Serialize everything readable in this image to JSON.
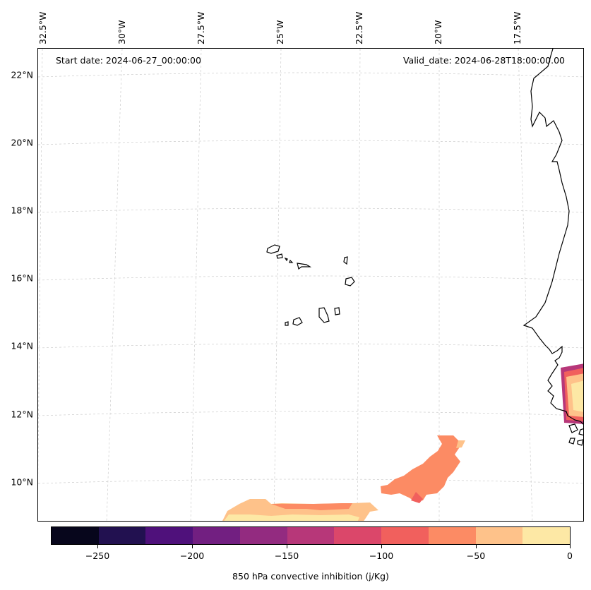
{
  "map": {
    "start_date": "Start date: 2024-06-27_00:00:00",
    "valid_date": "Valid_date: 2024-06-28T18:00:00.00",
    "lat_labels": [
      "22°N",
      "20°N",
      "18°N",
      "16°N",
      "14°N",
      "12°N",
      "10°N"
    ],
    "lon_labels": [
      "32.5°W",
      "30°W",
      "27.5°W",
      "25°W",
      "22.5°W",
      "20°W",
      "17.5°W"
    ],
    "region": "Cabo Verde and West African coast"
  },
  "colorbar": {
    "label": "850 hPa convective inhibition (j/Kg)",
    "tick_labels": [
      "−250",
      "−200",
      "−150",
      "−100",
      "−50",
      "0"
    ],
    "bounds": [
      -275,
      -250,
      -225,
      -200,
      -175,
      -150,
      -125,
      -100,
      -75,
      -50,
      -25,
      0
    ],
    "colors": [
      "#07061c",
      "#221150",
      "#4f117b",
      "#721f81",
      "#932b80",
      "#b73779",
      "#db476a",
      "#f1605d",
      "#fc8b64",
      "#fec28a",
      "#fde8a5"
    ]
  }
}
